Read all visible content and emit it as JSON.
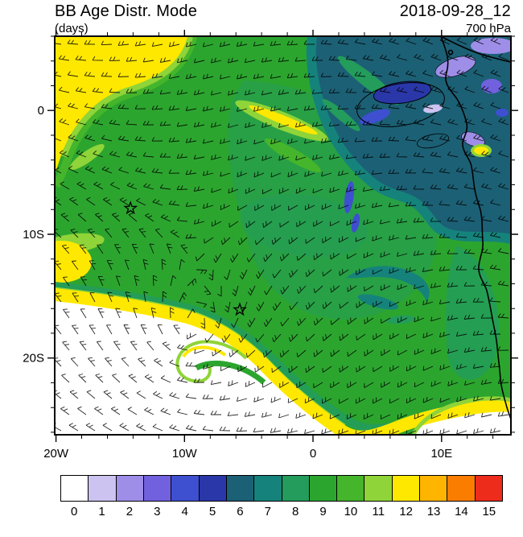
{
  "header": {
    "title_left": "BB Age Distr. Mode",
    "title_right": "2018-09-28_12",
    "units": "(days)",
    "level": "700 hPa"
  },
  "axes": {
    "x_ticks": [
      {
        "label": "20W",
        "lon": -20
      },
      {
        "label": "10W",
        "lon": -10
      },
      {
        "label": "0",
        "lon": 0
      },
      {
        "label": "10E",
        "lon": 10
      }
    ],
    "y_ticks": [
      {
        "label": "0",
        "lat": 0
      },
      {
        "label": "10S",
        "lat": -10
      },
      {
        "label": "20S",
        "lat": -20
      }
    ]
  },
  "colorbar": {
    "labels": [
      "0",
      "1",
      "2",
      "3",
      "4",
      "5",
      "6",
      "7",
      "8",
      "9",
      "10",
      "11",
      "12",
      "13",
      "14",
      "15"
    ]
  },
  "markers": [
    {
      "name": "star",
      "lon": -14.2,
      "lat": -7.9
    },
    {
      "name": "star",
      "lon": -5.7,
      "lat": -16.1
    }
  ],
  "chart_data": {
    "type": "heatmap",
    "title": "BB Age Distr. Mode",
    "units": "days",
    "valid_time": "2018-09-28_12",
    "pressure_level": "700 hPa",
    "projection": "lat-lon map, South Atlantic / southwest Africa",
    "lon_range": [
      -20.1,
      15.4
    ],
    "lat_range": [
      -26.2,
      6.0
    ],
    "x_tick_labels": [
      "20W",
      "10W",
      "0",
      "10E"
    ],
    "y_tick_labels": [
      "0",
      "10S",
      "20S"
    ],
    "levels": [
      0,
      1,
      2,
      3,
      4,
      5,
      6,
      7,
      8,
      9,
      10,
      11,
      12,
      13,
      14,
      15
    ],
    "palette_hex": [
      "#FFFFFF",
      "#CDC3F0",
      "#9E8EE8",
      "#7161DE",
      "#3E4FD0",
      "#2A37A8",
      "#1C6075",
      "#15837B",
      "#239C5C",
      "#2CA52F",
      "#45B52B",
      "#8FD438",
      "#FFE800",
      "#FFB400",
      "#FA7D00",
      "#EE2C1C"
    ],
    "cyclonic_vortex_center": [
      -9.6,
      -18.1
    ],
    "overlays": [
      "wind barbs on regular grid",
      "African coastline",
      "two star location markers"
    ],
    "field_summary": [
      {
        "region": "central and western domain (most of map)",
        "mode_days": "8-10 (green)"
      },
      {
        "region": "upper-right quadrant, Gulf of Guinea / Congo basin",
        "mode_days": "5-7 (dark teal/blue)"
      },
      {
        "region": "patches near coast and top-right corner",
        "mode_days": "1-4 (lavender/purple/blue)"
      },
      {
        "region": "top-left corner and curved band wrapping the subtropical vortex",
        "mode_days": "11-12 (yellow)"
      },
      {
        "region": "bottom-left vortex core and bottom-right corner",
        "mode_days": "0 (white)"
      }
    ]
  }
}
